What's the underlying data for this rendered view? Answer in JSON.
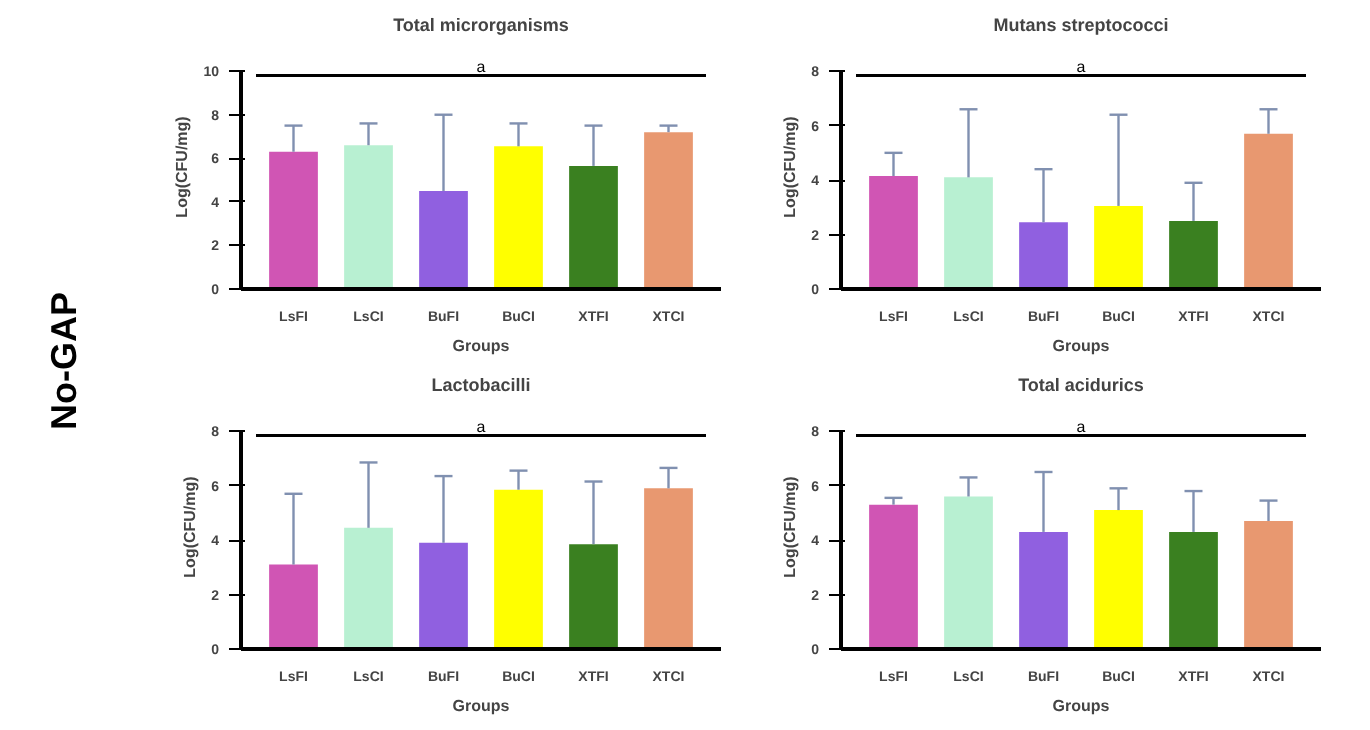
{
  "chart_data": [
    {
      "type": "bar",
      "title": "Total microrganisms",
      "xlabel": "Groups",
      "ylabel": "Log(CFU/mg)",
      "categories": [
        "LsFI",
        "LsCI",
        "BuFI",
        "BuCI",
        "XTFI",
        "XTCI"
      ],
      "values": [
        6.3,
        6.6,
        4.5,
        6.55,
        5.65,
        7.2
      ],
      "colors": [
        "#d055b4",
        "#b8f0d2",
        "#9060e0",
        "#ffff00",
        "#3a8020",
        "#e89870"
      ],
      "errors": [
        [
          6.3,
          7.5
        ],
        [
          6.6,
          7.6
        ],
        [
          4.5,
          8.0
        ],
        [
          6.55,
          7.6
        ],
        [
          5.65,
          7.5
        ],
        [
          7.2,
          7.5
        ]
      ],
      "ylim": [
        0,
        10
      ],
      "yticks": [
        0,
        2,
        4,
        6,
        8,
        10
      ],
      "annotations": [
        "a",
        "No-GAP"
      ],
      "grid": false
    },
    {
      "type": "bar",
      "title": "Mutans streptococci",
      "xlabel": "Groups",
      "ylabel": "Log(CFU/mg)",
      "categories": [
        "LsFI",
        "LsCI",
        "BuFI",
        "BuCI",
        "XTFI",
        "XTCI"
      ],
      "values": [
        4.15,
        4.1,
        2.45,
        3.05,
        2.5,
        5.7
      ],
      "colors": [
        "#d055b4",
        "#b8f0d2",
        "#9060e0",
        "#ffff00",
        "#3a8020",
        "#e89870"
      ],
      "errors": [
        [
          4.15,
          5.0
        ],
        [
          4.1,
          6.6
        ],
        [
          2.45,
          4.4
        ],
        [
          3.05,
          6.4
        ],
        [
          2.5,
          3.9
        ],
        [
          5.7,
          6.6
        ]
      ],
      "ylim": [
        0,
        8
      ],
      "yticks": [
        0,
        2,
        4,
        6,
        8
      ],
      "annotations": [
        "a"
      ],
      "grid": false
    },
    {
      "type": "bar",
      "title": "Lactobacilli",
      "xlabel": "Groups",
      "ylabel": "Log(CFU/mg)",
      "categories": [
        "LsFI",
        "LsCI",
        "BuFI",
        "BuCI",
        "XTFI",
        "XTCI"
      ],
      "values": [
        3.1,
        4.45,
        3.9,
        5.85,
        3.85,
        5.9
      ],
      "colors": [
        "#d055b4",
        "#b8f0d2",
        "#9060e0",
        "#ffff00",
        "#3a8020",
        "#e89870"
      ],
      "errors": [
        [
          3.1,
          5.7
        ],
        [
          4.45,
          6.85
        ],
        [
          3.9,
          6.35
        ],
        [
          5.85,
          6.55
        ],
        [
          3.85,
          6.15
        ],
        [
          5.9,
          6.65
        ]
      ],
      "ylim": [
        0,
        8
      ],
      "yticks": [
        0,
        2,
        4,
        6,
        8
      ],
      "annotations": [
        "a"
      ],
      "grid": false
    },
    {
      "type": "bar",
      "title": "Total acidurics",
      "xlabel": "Groups",
      "ylabel": "Log(CFU/mg)",
      "categories": [
        "LsFI",
        "LsCI",
        "BuFI",
        "BuCI",
        "XTFI",
        "XTCI"
      ],
      "values": [
        5.3,
        5.6,
        4.3,
        5.1,
        4.3,
        4.7
      ],
      "colors": [
        "#d055b4",
        "#b8f0d2",
        "#9060e0",
        "#ffff00",
        "#3a8020",
        "#e89870"
      ],
      "errors": [
        [
          5.3,
          5.55
        ],
        [
          5.6,
          6.3
        ],
        [
          4.3,
          6.5
        ],
        [
          5.1,
          5.9
        ],
        [
          4.3,
          5.8
        ],
        [
          4.7,
          5.45
        ]
      ],
      "ylim": [
        0,
        8
      ],
      "yticks": [
        0,
        2,
        4,
        6,
        8
      ],
      "annotations": [
        "a"
      ],
      "grid": false
    }
  ]
}
